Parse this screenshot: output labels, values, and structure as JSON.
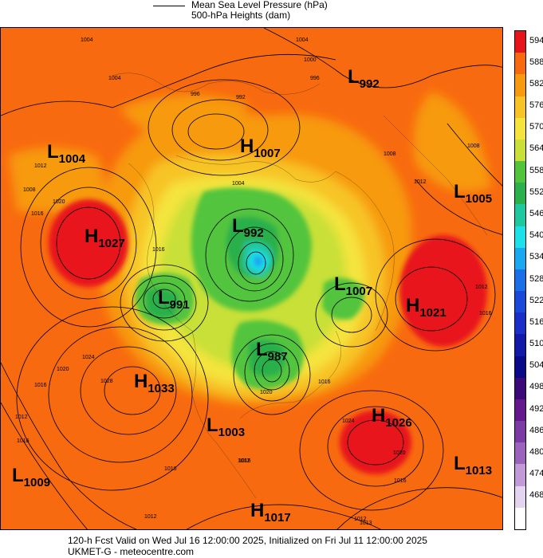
{
  "legend": {
    "line1": "Mean Sea Level Pressure (hPa)",
    "line2": "500-hPa Heights (dam)"
  },
  "footer": {
    "line1": "120-h Fcst Valid on Wed Jul 16 12:00:00 2025, Initialized on Fri Jul 11 12:00:00 2025",
    "line2": "UKMET-G  - meteocentre.com"
  },
  "colorbar": [
    {
      "label": "594",
      "color": "#e8141c"
    },
    {
      "label": "588",
      "color": "#f86a10"
    },
    {
      "label": "582",
      "color": "#f79a10"
    },
    {
      "label": "576",
      "color": "#f7c428"
    },
    {
      "label": "570",
      "color": "#f5e43c"
    },
    {
      "label": "564",
      "color": "#c8e038"
    },
    {
      "label": "558",
      "color": "#52c43c"
    },
    {
      "label": "552",
      "color": "#2ab04c"
    },
    {
      "label": "546",
      "color": "#20c8a0"
    },
    {
      "label": "540",
      "color": "#1ee0e8"
    },
    {
      "label": "534",
      "color": "#1aa8f0"
    },
    {
      "label": "528",
      "color": "#1a6ee8"
    },
    {
      "label": "522",
      "color": "#1a48d8"
    },
    {
      "label": "516",
      "color": "#1a2ec8"
    },
    {
      "label": "510",
      "color": "#1218a8"
    },
    {
      "label": "504",
      "color": "#0a0a88"
    },
    {
      "label": "498",
      "color": "#3c0a78"
    },
    {
      "label": "492",
      "color": "#64188c"
    },
    {
      "label": "486",
      "color": "#7c3aa4"
    },
    {
      "label": "480",
      "color": "#9a64bc"
    },
    {
      "label": "474",
      "color": "#c39ad8"
    },
    {
      "label": "468",
      "color": "#e4d4f0"
    },
    {
      "label": "",
      "color": "#ffffff"
    }
  ],
  "systems": [
    {
      "type": "L",
      "value": "1004"
    },
    {
      "type": "L",
      "value": "992"
    },
    {
      "type": "H",
      "value": "1007"
    },
    {
      "type": "L",
      "value": "1005"
    },
    {
      "type": "H",
      "value": "1027"
    },
    {
      "type": "L",
      "value": "992"
    },
    {
      "type": "L",
      "value": "991"
    },
    {
      "type": "L",
      "value": "1007"
    },
    {
      "type": "H",
      "value": "1021"
    },
    {
      "type": "L",
      "value": "987"
    },
    {
      "type": "H",
      "value": "1033"
    },
    {
      "type": "H",
      "value": "1026"
    },
    {
      "type": "L",
      "value": "1003"
    },
    {
      "type": "L",
      "value": "1009"
    },
    {
      "type": "L",
      "value": "1013"
    },
    {
      "type": "H",
      "value": "1017"
    }
  ],
  "isobar_labels": [
    "1004",
    "1000",
    "996",
    "1004",
    "996",
    "992",
    "1008",
    "1012",
    "1016",
    "1020",
    "1004",
    "1008",
    "1004",
    "1008",
    "1012",
    "1016",
    "1012",
    "1016",
    "1020",
    "1024",
    "1028",
    "1016",
    "1012",
    "1020",
    "1024",
    "1020",
    "1016",
    "1012",
    "1016",
    "1012",
    "1016",
    "1012",
    "1016",
    "1016",
    "1013"
  ]
}
